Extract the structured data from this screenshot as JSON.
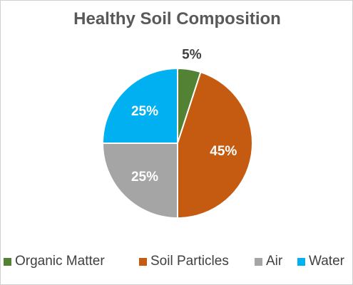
{
  "chart_data": {
    "type": "pie",
    "title": "Healthy Soil Composition",
    "categories": [
      "Organic Matter",
      "Soil Particles",
      "Air",
      "Water"
    ],
    "values": [
      5,
      45,
      25,
      25
    ],
    "data_labels": [
      "5%",
      "45%",
      "25%",
      "25%"
    ],
    "unit": "%",
    "colors": [
      "#548235",
      "#C55A11",
      "#A5A5A5",
      "#00B0F0"
    ],
    "label_colors": [
      "#404040",
      "#ffffff",
      "#ffffff",
      "#ffffff"
    ],
    "start_angle_deg": 0,
    "direction": "clockwise",
    "legend_position": "bottom"
  }
}
